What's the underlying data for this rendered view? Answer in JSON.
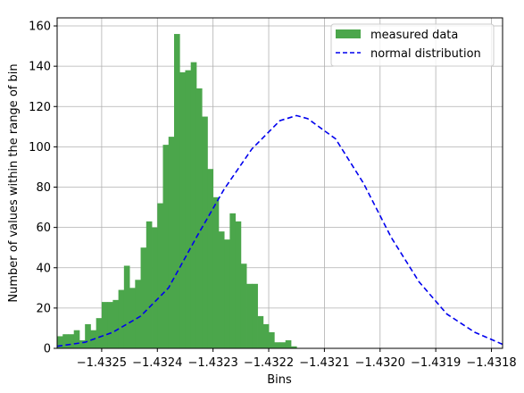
{
  "chart_data": {
    "type": "bar",
    "subtype": "histogram with overlaid line",
    "xlabel": "Bins",
    "ylabel": "Number of values within the range of bin",
    "xlim": [
      -1.43258,
      -1.43178
    ],
    "ylim": [
      0,
      164
    ],
    "x_ticks": [
      -1.4325,
      -1.4324,
      -1.4323,
      -1.4322,
      -1.4321,
      -1.432,
      -1.4319,
      -1.4318
    ],
    "x_tick_labels": [
      "−1.4325",
      "−1.4324",
      "−1.4323",
      "−1.4322",
      "−1.4321",
      "−1.4320",
      "−1.4319",
      "−1.4318"
    ],
    "y_ticks": [
      0,
      20,
      40,
      60,
      80,
      100,
      120,
      140,
      160
    ],
    "y_tick_labels": [
      "0",
      "20",
      "40",
      "60",
      "80",
      "100",
      "120",
      "140",
      "160"
    ],
    "grid": true,
    "legend_position": "top-right",
    "series": [
      {
        "name": "measured data",
        "kind": "histogram",
        "color": "#4ba64b",
        "bin_start": -1.43258,
        "bin_width": 1e-05,
        "values": [
          6,
          7,
          7,
          9,
          4,
          12,
          9,
          15,
          23,
          23,
          24,
          29,
          41,
          30,
          34,
          50,
          63,
          60,
          72,
          101,
          105,
          156,
          137,
          138,
          142,
          129,
          115,
          89,
          75,
          58,
          54,
          67,
          63,
          42,
          32,
          32,
          16,
          12,
          8,
          3,
          3,
          4,
          1,
          0
        ]
      },
      {
        "name": "normal distribution",
        "kind": "line",
        "color": "#0000ee",
        "style": "dashed",
        "x": [
          -1.43258,
          -1.43253,
          -1.43248,
          -1.43243,
          -1.43238,
          -1.43233,
          -1.43228,
          -1.43223,
          -1.43218,
          -1.43215,
          -1.43213,
          -1.43208,
          -1.43203,
          -1.43198,
          -1.43193,
          -1.43188,
          -1.43183,
          -1.43178
        ],
        "y": [
          1,
          3,
          8,
          16,
          30,
          55,
          79,
          99,
          113,
          115.5,
          114,
          104,
          82,
          55,
          33,
          17,
          8,
          2
        ]
      }
    ]
  }
}
